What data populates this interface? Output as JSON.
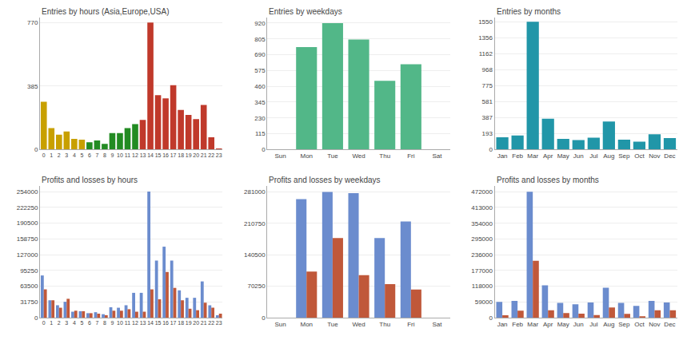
{
  "chart_data": [
    {
      "type": "bar",
      "title": "Entries by hours (Asia,Europe,USA)",
      "categories": [
        "0",
        "1",
        "2",
        "3",
        "4",
        "5",
        "6",
        "7",
        "8",
        "9",
        "10",
        "11",
        "12",
        "13",
        "14",
        "15",
        "16",
        "17",
        "18",
        "19",
        "20",
        "21",
        "22",
        "23"
      ],
      "values": [
        290,
        130,
        90,
        110,
        65,
        60,
        45,
        55,
        35,
        100,
        100,
        130,
        155,
        180,
        770,
        330,
        310,
        390,
        240,
        210,
        185,
        270,
        75,
        5
      ],
      "colors": [
        "#c8a000",
        "#c8a000",
        "#c8a000",
        "#c8a000",
        "#c8a000",
        "#c8a000",
        "#228B22",
        "#228B22",
        "#228B22",
        "#228B22",
        "#228B22",
        "#228B22",
        "#228B22",
        "#c0392b",
        "#c0392b",
        "#c0392b",
        "#c0392b",
        "#c0392b",
        "#c0392b",
        "#c0392b",
        "#c0392b",
        "#c0392b",
        "#c0392b",
        "#c0392b"
      ],
      "ylim": [
        0,
        800
      ],
      "yticks": [
        0,
        385,
        770
      ],
      "grid": true
    },
    {
      "type": "bar",
      "title": "Entries by weekdays",
      "categories": [
        "Sun",
        "Mon",
        "Tue",
        "Wed",
        "Thu",
        "Fri",
        "Sat"
      ],
      "values": [
        0,
        745,
        920,
        800,
        500,
        620,
        0
      ],
      "color": "#52b788",
      "ylim": [
        0,
        960
      ],
      "yticks": [
        0,
        115,
        230,
        345,
        460,
        575,
        690,
        805,
        920
      ],
      "grid": true
    },
    {
      "type": "bar",
      "title": "Entries by months",
      "categories": [
        "Jan",
        "Feb",
        "Mar",
        "Apr",
        "May",
        "Jun",
        "Jul",
        "Aug",
        "Sep",
        "Oct",
        "Nov",
        "Dec"
      ],
      "values": [
        150,
        170,
        1550,
        375,
        130,
        115,
        145,
        340,
        120,
        95,
        185,
        140
      ],
      "color": "#2196a8",
      "ylim": [
        0,
        1600
      ],
      "yticks": [
        0,
        193,
        387,
        581,
        775,
        968,
        1162,
        1356,
        1550
      ],
      "grid": true
    },
    {
      "type": "bar",
      "title": "Profits and losses by hours",
      "categories": [
        "0",
        "1",
        "2",
        "3",
        "4",
        "5",
        "6",
        "7",
        "8",
        "9",
        "10",
        "11",
        "12",
        "13",
        "14",
        "15",
        "16",
        "17",
        "18",
        "19",
        "20",
        "21",
        "22",
        "23"
      ],
      "series": [
        {
          "color": "#6b8cce",
          "values": [
            85000,
            35000,
            25000,
            32000,
            12000,
            13000,
            9000,
            11000,
            7000,
            21000,
            20000,
            25000,
            50000,
            50000,
            254000,
            115000,
            143000,
            115000,
            55000,
            40000,
            40000,
            73000,
            25000,
            5000
          ]
        },
        {
          "color": "#c0583a",
          "values": [
            57000,
            35000,
            20000,
            38000,
            14000,
            13000,
            9000,
            8000,
            5000,
            14000,
            14000,
            17000,
            12000,
            12000,
            57000,
            37000,
            92000,
            60000,
            35000,
            18000,
            15000,
            30000,
            20000,
            8000
          ]
        }
      ],
      "ylim": [
        0,
        266000
      ],
      "yticks": [
        0,
        31750,
        63500,
        95250,
        127000,
        158750,
        190500,
        222250,
        254000
      ],
      "grid": true
    },
    {
      "type": "bar",
      "title": "Profits and losses by weekdays",
      "categories": [
        "Sun",
        "Mon",
        "Tue",
        "Wed",
        "Thu",
        "Fri",
        "Sat"
      ],
      "series": [
        {
          "color": "#6b8cce",
          "values": [
            0,
            265000,
            281000,
            278000,
            178000,
            215000,
            0
          ]
        },
        {
          "color": "#c0583a",
          "values": [
            0,
            103000,
            178000,
            95000,
            75000,
            63000,
            0
          ]
        }
      ],
      "ylim": [
        0,
        295000
      ],
      "yticks": [
        0,
        70250,
        140500,
        210750,
        281000
      ],
      "grid": true
    },
    {
      "type": "bar",
      "title": "Profits and losses by months",
      "categories": [
        "Jan",
        "Feb",
        "Mar",
        "Apr",
        "May",
        "Jun",
        "Jul",
        "Aug",
        "Sep",
        "Oct",
        "Nov",
        "Dec"
      ],
      "series": [
        {
          "color": "#6b8cce",
          "values": [
            59000,
            63000,
            472000,
            121000,
            55000,
            50000,
            57000,
            112000,
            55000,
            44000,
            63000,
            57000
          ]
        },
        {
          "color": "#c0583a",
          "values": [
            9000,
            26000,
            213000,
            28000,
            17000,
            15000,
            10000,
            38000,
            14000,
            5000,
            28000,
            28000
          ]
        }
      ],
      "ylim": [
        0,
        495000
      ],
      "yticks": [
        0,
        59000,
        118000,
        177000,
        236000,
        295000,
        354000,
        413000,
        472000
      ],
      "grid": true
    }
  ]
}
